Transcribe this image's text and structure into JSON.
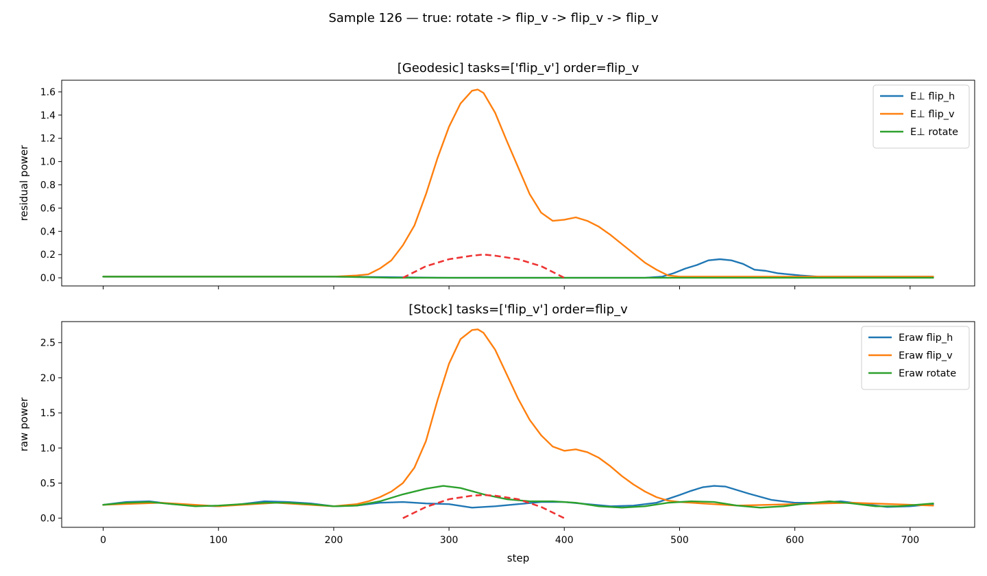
{
  "figure": {
    "suptitle": "Sample 126 — true: rotate -> flip_v -> flip_v -> flip_v",
    "xlabel": "step"
  },
  "colors": {
    "flip_h": "#1f77b4",
    "flip_v": "#ff7f0e",
    "rotate": "#2ca02c",
    "true_window": "#ee3333"
  },
  "chart_data": [
    {
      "type": "line",
      "title": "[Geodesic] tasks=['flip_v'] order=flip_v",
      "xlabel": "",
      "ylabel": "residual power",
      "xlim": [
        -36,
        756
      ],
      "ylim": [
        -0.07,
        1.7
      ],
      "xticks": [
        0,
        100,
        200,
        300,
        400,
        500,
        600,
        700
      ],
      "yticks": [
        0.0,
        0.2,
        0.4,
        0.6,
        0.8,
        1.0,
        1.2,
        1.4,
        1.6
      ],
      "ytick_labels": [
        "0.0",
        "0.2",
        "0.4",
        "0.6",
        "0.8",
        "1.0",
        "1.2",
        "1.4",
        "1.6"
      ],
      "legend": "top-right",
      "series": [
        {
          "name": "E⊥ flip_h",
          "color_key": "flip_h",
          "x": [
            0,
            100,
            200,
            300,
            400,
            470,
            485,
            495,
            505,
            515,
            525,
            535,
            545,
            555,
            565,
            575,
            585,
            595,
            605,
            620,
            640,
            660,
            680,
            700,
            720
          ],
          "y": [
            0.01,
            0.01,
            0.01,
            0.0,
            0.0,
            0.0,
            0.01,
            0.04,
            0.08,
            0.11,
            0.15,
            0.16,
            0.15,
            0.12,
            0.07,
            0.06,
            0.04,
            0.03,
            0.02,
            0.01,
            0.01,
            0.01,
            0.01,
            0.01,
            0.01
          ]
        },
        {
          "name": "E⊥ flip_v",
          "color_key": "flip_v",
          "x": [
            0,
            50,
            100,
            150,
            200,
            220,
            230,
            240,
            250,
            260,
            270,
            280,
            290,
            300,
            310,
            320,
            325,
            330,
            340,
            350,
            360,
            370,
            380,
            390,
            400,
            410,
            420,
            430,
            440,
            450,
            460,
            470,
            480,
            490,
            500,
            600,
            720
          ],
          "y": [
            0.01,
            0.01,
            0.01,
            0.01,
            0.01,
            0.02,
            0.03,
            0.08,
            0.15,
            0.28,
            0.45,
            0.72,
            1.03,
            1.3,
            1.5,
            1.61,
            1.62,
            1.59,
            1.42,
            1.18,
            0.95,
            0.72,
            0.56,
            0.49,
            0.5,
            0.52,
            0.49,
            0.44,
            0.37,
            0.29,
            0.21,
            0.13,
            0.07,
            0.02,
            0.01,
            0.01,
            0.01
          ]
        },
        {
          "name": "E⊥ rotate",
          "color_key": "rotate",
          "x": [
            0,
            100,
            200,
            250,
            300,
            400,
            500,
            600,
            720
          ],
          "y": [
            0.01,
            0.01,
            0.01,
            0.0,
            0.0,
            0.0,
            0.0,
            0.0,
            0.0
          ]
        }
      ],
      "true_window": {
        "x": [
          260,
          280,
          300,
          320,
          330,
          340,
          360,
          380,
          400
        ],
        "y": [
          0.0,
          0.1,
          0.16,
          0.19,
          0.2,
          0.19,
          0.16,
          0.1,
          0.0
        ]
      }
    },
    {
      "type": "line",
      "title": "[Stock] tasks=['flip_v'] order=flip_v",
      "xlabel": "step",
      "ylabel": "raw power",
      "xlim": [
        -36,
        756
      ],
      "ylim": [
        -0.13,
        2.8
      ],
      "xticks": [
        0,
        100,
        200,
        300,
        400,
        500,
        600,
        700
      ],
      "yticks": [
        0.0,
        0.5,
        1.0,
        1.5,
        2.0,
        2.5
      ],
      "ytick_labels": [
        "0.0",
        "0.5",
        "1.0",
        "1.5",
        "2.0",
        "2.5"
      ],
      "legend": "top-right",
      "series": [
        {
          "name": "Eraw flip_h",
          "color_key": "flip_h",
          "x": [
            0,
            20,
            40,
            60,
            80,
            100,
            120,
            140,
            160,
            180,
            200,
            220,
            240,
            260,
            280,
            300,
            320,
            340,
            360,
            380,
            400,
            420,
            440,
            460,
            480,
            500,
            510,
            520,
            530,
            540,
            560,
            580,
            600,
            620,
            640,
            660,
            680,
            700,
            720
          ],
          "y": [
            0.19,
            0.23,
            0.24,
            0.2,
            0.18,
            0.17,
            0.2,
            0.24,
            0.23,
            0.21,
            0.17,
            0.18,
            0.22,
            0.23,
            0.21,
            0.2,
            0.15,
            0.17,
            0.2,
            0.23,
            0.23,
            0.2,
            0.17,
            0.18,
            0.22,
            0.33,
            0.39,
            0.44,
            0.46,
            0.45,
            0.35,
            0.26,
            0.22,
            0.22,
            0.24,
            0.2,
            0.16,
            0.17,
            0.2
          ]
        },
        {
          "name": "Eraw flip_v",
          "color_key": "flip_v",
          "x": [
            0,
            50,
            100,
            150,
            200,
            220,
            230,
            240,
            250,
            260,
            270,
            280,
            290,
            300,
            310,
            320,
            325,
            330,
            340,
            350,
            360,
            370,
            380,
            390,
            400,
            410,
            420,
            430,
            440,
            450,
            460,
            470,
            480,
            490,
            500,
            550,
            600,
            650,
            720
          ],
          "y": [
            0.19,
            0.22,
            0.17,
            0.22,
            0.17,
            0.2,
            0.24,
            0.3,
            0.38,
            0.5,
            0.72,
            1.1,
            1.68,
            2.2,
            2.55,
            2.68,
            2.69,
            2.64,
            2.4,
            2.05,
            1.7,
            1.4,
            1.18,
            1.02,
            0.96,
            0.98,
            0.94,
            0.86,
            0.74,
            0.6,
            0.48,
            0.38,
            0.3,
            0.25,
            0.23,
            0.18,
            0.2,
            0.22,
            0.18
          ]
        },
        {
          "name": "Eraw rotate",
          "color_key": "rotate",
          "x": [
            0,
            20,
            40,
            60,
            80,
            100,
            120,
            140,
            160,
            180,
            200,
            220,
            240,
            260,
            280,
            295,
            310,
            330,
            350,
            370,
            390,
            410,
            430,
            450,
            470,
            490,
            510,
            530,
            550,
            570,
            590,
            610,
            630,
            650,
            670,
            690,
            720
          ],
          "y": [
            0.19,
            0.22,
            0.23,
            0.2,
            0.17,
            0.18,
            0.2,
            0.22,
            0.22,
            0.2,
            0.17,
            0.18,
            0.24,
            0.34,
            0.42,
            0.46,
            0.43,
            0.34,
            0.27,
            0.24,
            0.24,
            0.22,
            0.17,
            0.15,
            0.17,
            0.22,
            0.24,
            0.23,
            0.18,
            0.15,
            0.17,
            0.21,
            0.24,
            0.21,
            0.17,
            0.17,
            0.21
          ]
        }
      ],
      "true_window": {
        "x": [
          260,
          280,
          300,
          320,
          330,
          340,
          360,
          380,
          400
        ],
        "y": [
          0.0,
          0.16,
          0.27,
          0.32,
          0.33,
          0.32,
          0.27,
          0.16,
          0.0
        ]
      }
    }
  ]
}
